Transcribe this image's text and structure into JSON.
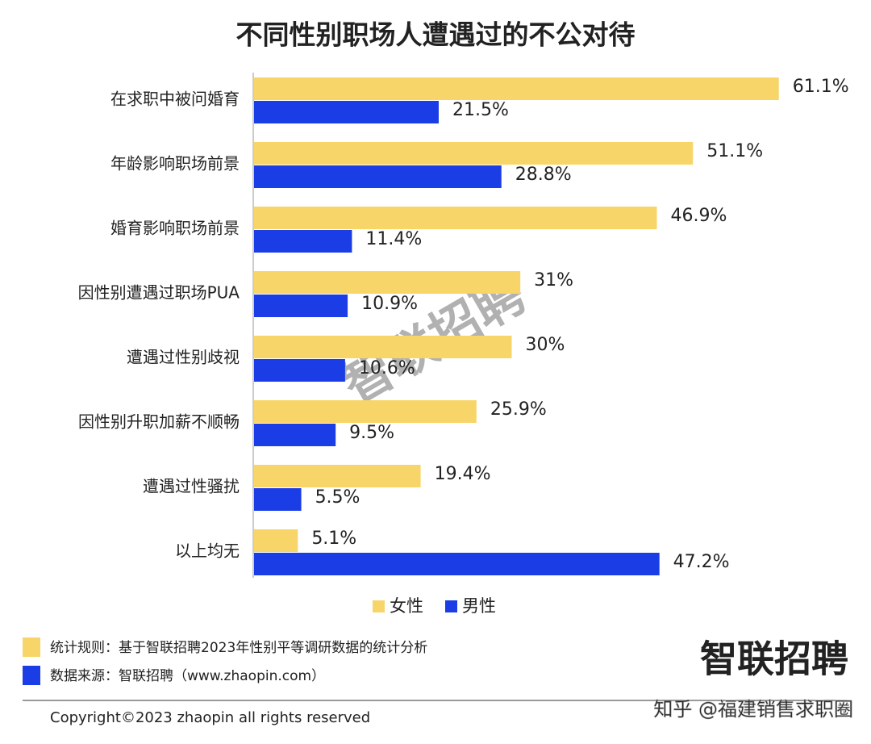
{
  "chart_data": {
    "type": "bar",
    "orientation": "horizontal",
    "title": "不同性别职场人遭遇过的不公对待",
    "categories": [
      "在求职中被问婚育",
      "年龄影响职场前景",
      "婚育影响职场前景",
      "因性别遭遇过职场PUA",
      "遭遇过性别歧视",
      "因性别升职加薪不顺畅",
      "遭遇过性骚扰",
      "以上均无"
    ],
    "series": [
      {
        "name": "女性",
        "color": "#f8d568",
        "values": [
          61.1,
          51.1,
          46.9,
          31,
          30,
          25.9,
          19.4,
          5.1
        ],
        "value_labels": [
          "61.1%",
          "51.1%",
          "46.9%",
          "31%",
          "30%",
          "25.9%",
          "19.4%",
          "5.1%"
        ]
      },
      {
        "name": "男性",
        "color": "#1a3de6",
        "values": [
          21.5,
          28.8,
          11.4,
          10.9,
          10.6,
          9.5,
          5.5,
          47.2
        ],
        "value_labels": [
          "21.5%",
          "28.8%",
          "11.4%",
          "10.9%",
          "10.6%",
          "9.5%",
          "5.5%",
          "47.2%"
        ]
      }
    ]
  },
  "notes": [
    "统计规则：基于智联招聘2023年性别平等调研数据的统计分析",
    "数据来源：智联招聘（www.zhaopin.com）"
  ],
  "logo": "智联招聘",
  "watermark": "智联招聘",
  "copyright": "Copyright©2023 zhaopin all rights reserved",
  "credit": "知乎 @福建销售求职圈"
}
